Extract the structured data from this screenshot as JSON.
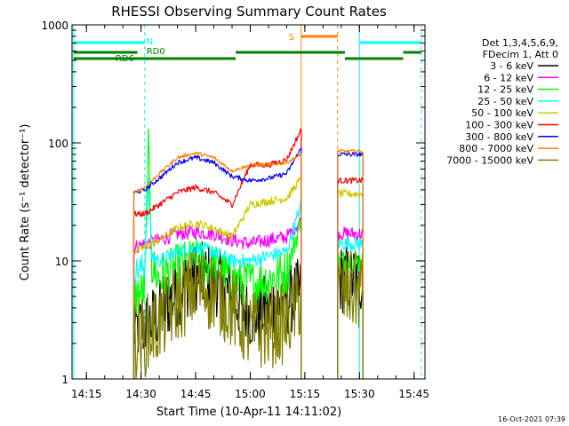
{
  "chart_data": {
    "type": "line",
    "title": "RHESSI Observing Summary Count Rates",
    "xlabel": "Start Time (10-Apr-11 14:11:02)",
    "ylabel": "Count Rate (s⁻¹ detector⁻¹)",
    "y_scale": "log",
    "ylim": [
      1,
      1000
    ],
    "xlim": [
      "14:11:02",
      "15:48:00"
    ],
    "x_ticks": [
      "14:15",
      "14:30",
      "14:45",
      "15:00",
      "15:15",
      "15:30",
      "15:45"
    ],
    "y_ticks": [
      "1",
      "10",
      "100",
      "1000"
    ],
    "grid": false,
    "timestamp": "16-Oct-2021 07:39",
    "legend": {
      "placement": "right",
      "header": [
        "Det 1,3,4,5,6,9,",
        "FDecim 1, Att 0"
      ],
      "entries": [
        {
          "label": "3 - 6 keV",
          "color": "#000000"
        },
        {
          "label": "6 - 12 keV",
          "color": "#ff00ff"
        },
        {
          "label": "12 - 25 keV",
          "color": "#00ff00"
        },
        {
          "label": "25 - 50 keV",
          "color": "#00ffff"
        },
        {
          "label": "50 - 100 keV",
          "color": "#cccc00"
        },
        {
          "label": "100 - 300 keV",
          "color": "#ff0000"
        },
        {
          "label": "300 - 800 keV",
          "color": "#0000ff"
        },
        {
          "label": "800 - 7000 keV",
          "color": "#ff8000"
        },
        {
          "label": "7000 - 15000 keV",
          "color": "#808000"
        }
      ]
    },
    "flag_labels": {
      "night": "N",
      "saa": "S",
      "rd0": "RD0",
      "rd6": "RD6"
    },
    "segments": [
      [
        "14:28:00",
        "15:14:00"
      ],
      [
        "15:24:00",
        "15:31:00"
      ]
    ],
    "series": [
      {
        "name": "3 - 6 keV",
        "color": "#000000",
        "jitter": 0.3,
        "points": [
          [
            "14:28:00",
            2.6
          ],
          [
            "14:31:00",
            2.8
          ],
          [
            "14:35:00",
            3.5
          ],
          [
            "14:40:00",
            5.5
          ],
          [
            "14:45:00",
            7.5
          ],
          [
            "14:50:00",
            7.0
          ],
          [
            "14:55:00",
            5.0
          ],
          [
            "15:00:00",
            3.5
          ],
          [
            "15:05:00",
            4.0
          ],
          [
            "15:10:00",
            4.5
          ],
          [
            "15:14:00",
            5.5
          ],
          [
            "15:24:00",
            7.0
          ],
          [
            "15:31:00",
            7.0
          ]
        ]
      },
      {
        "name": "6 - 12 keV",
        "color": "#ff00ff",
        "jitter": 0.12,
        "points": [
          [
            "14:28:00",
            13
          ],
          [
            "14:31:00",
            14
          ],
          [
            "14:35:00",
            15
          ],
          [
            "14:40:00",
            17
          ],
          [
            "14:45:00",
            17.5
          ],
          [
            "14:50:00",
            17
          ],
          [
            "14:55:00",
            15
          ],
          [
            "15:00:00",
            14
          ],
          [
            "15:05:00",
            15
          ],
          [
            "15:10:00",
            16
          ],
          [
            "15:14:00",
            22
          ],
          [
            "15:24:00",
            17
          ],
          [
            "15:31:00",
            17
          ]
        ]
      },
      {
        "name": "12 - 25 keV",
        "color": "#00ff00",
        "jitter": 0.2,
        "points": [
          [
            "14:28:00",
            5
          ],
          [
            "14:31:00",
            5.5
          ],
          [
            "14:32:00",
            110
          ],
          [
            "14:33:00",
            9
          ],
          [
            "14:35:00",
            7
          ],
          [
            "14:40:00",
            9
          ],
          [
            "14:45:00",
            10
          ],
          [
            "14:50:00",
            9
          ],
          [
            "14:55:00",
            7
          ],
          [
            "15:00:00",
            6.5
          ],
          [
            "15:05:00",
            7
          ],
          [
            "15:10:00",
            8
          ],
          [
            "15:14:00",
            22
          ],
          [
            "15:24:00",
            10
          ],
          [
            "15:31:00",
            10
          ]
        ]
      },
      {
        "name": "25 - 50 keV",
        "color": "#00ffff",
        "jitter": 0.12,
        "points": [
          [
            "14:28:00",
            8
          ],
          [
            "14:31:00",
            9
          ],
          [
            "14:32:00",
            45
          ],
          [
            "14:33:00",
            11
          ],
          [
            "14:35:00",
            10
          ],
          [
            "14:40:00",
            12
          ],
          [
            "14:45:00",
            13
          ],
          [
            "14:50:00",
            12
          ],
          [
            "14:55:00",
            10
          ],
          [
            "15:00:00",
            10
          ],
          [
            "15:05:00",
            11
          ],
          [
            "15:10:00",
            12
          ],
          [
            "15:14:00",
            30
          ],
          [
            "15:24:00",
            14
          ],
          [
            "15:31:00",
            14
          ]
        ]
      },
      {
        "name": "50 - 100 keV",
        "color": "#cccc00",
        "jitter": 0.07,
        "points": [
          [
            "14:28:00",
            12
          ],
          [
            "14:31:00",
            13
          ],
          [
            "14:35:00",
            15
          ],
          [
            "14:40:00",
            19
          ],
          [
            "14:45:00",
            21
          ],
          [
            "14:50:00",
            19
          ],
          [
            "14:55:00",
            16
          ],
          [
            "15:00:00",
            30
          ],
          [
            "15:05:00",
            32
          ],
          [
            "15:10:00",
            34
          ],
          [
            "15:14:00",
            50
          ],
          [
            "15:24:00",
            37
          ],
          [
            "15:31:00",
            37
          ]
        ]
      },
      {
        "name": "100 - 300 keV",
        "color": "#ff0000",
        "jitter": 0.05,
        "points": [
          [
            "14:28:00",
            25
          ],
          [
            "14:31:00",
            25
          ],
          [
            "14:35:00",
            30
          ],
          [
            "14:40:00",
            38
          ],
          [
            "14:45:00",
            42
          ],
          [
            "14:50:00",
            38
          ],
          [
            "14:55:00",
            30
          ],
          [
            "15:00:00",
            65
          ],
          [
            "15:05:00",
            65
          ],
          [
            "15:10:00",
            72
          ],
          [
            "15:14:00",
            130
          ],
          [
            "15:24:00",
            48
          ],
          [
            "15:31:00",
            48
          ]
        ]
      },
      {
        "name": "300 - 800 keV",
        "color": "#0000ff",
        "jitter": 0.04,
        "points": [
          [
            "14:28:00",
            38
          ],
          [
            "14:31:00",
            40
          ],
          [
            "14:35:00",
            50
          ],
          [
            "14:40:00",
            68
          ],
          [
            "14:45:00",
            75
          ],
          [
            "14:50:00",
            68
          ],
          [
            "14:55:00",
            52
          ],
          [
            "15:00:00",
            48
          ],
          [
            "15:05:00",
            50
          ],
          [
            "15:10:00",
            55
          ],
          [
            "15:14:00",
            90
          ],
          [
            "15:24:00",
            80
          ],
          [
            "15:31:00",
            80
          ]
        ]
      },
      {
        "name": "800 - 7000 keV",
        "color": "#ff8000",
        "jitter": 0.03,
        "points": [
          [
            "14:28:00",
            38
          ],
          [
            "14:31:00",
            42
          ],
          [
            "14:35:00",
            55
          ],
          [
            "14:40:00",
            75
          ],
          [
            "14:45:00",
            82
          ],
          [
            "14:50:00",
            75
          ],
          [
            "14:55:00",
            58
          ],
          [
            "15:00:00",
            65
          ],
          [
            "15:05:00",
            65
          ],
          [
            "15:10:00",
            68
          ],
          [
            "15:14:00",
            80
          ],
          [
            "15:24:00",
            85
          ],
          [
            "15:31:00",
            85
          ]
        ]
      },
      {
        "name": "7000 - 15000 keV",
        "color": "#808000",
        "jitter": 0.35,
        "points": [
          [
            "14:28:00",
            2.2
          ],
          [
            "14:31:00",
            2.3
          ],
          [
            "14:35:00",
            3.0
          ],
          [
            "14:40:00",
            4.5
          ],
          [
            "14:45:00",
            6.0
          ],
          [
            "14:50:00",
            5.5
          ],
          [
            "14:55:00",
            4.0
          ],
          [
            "15:00:00",
            2.5
          ],
          [
            "15:05:00",
            2.7
          ],
          [
            "15:10:00",
            3.0
          ],
          [
            "15:14:00",
            5.0
          ],
          [
            "15:24:00",
            5.5
          ],
          [
            "15:31:00",
            5.5
          ]
        ]
      }
    ]
  }
}
